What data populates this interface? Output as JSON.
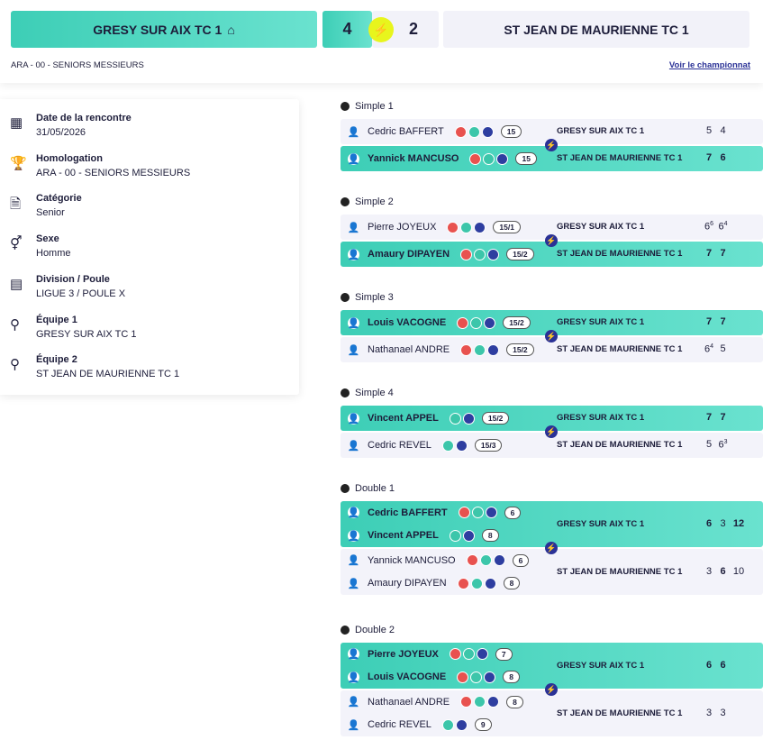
{
  "header": {
    "home_team": "GRESY SUR AIX TC 1",
    "home_score": 4,
    "away_score": 2,
    "away_team": "ST JEAN DE MAURIENNE TC 1",
    "division": "ARA - 00 - SENIORS MESSIEURS",
    "link": "Voir le championnat"
  },
  "info": [
    {
      "label": "Date de la rencontre",
      "value": "31/05/2026"
    },
    {
      "label": "Homologation",
      "value": "ARA - 00 - SENIORS MESSIEURS"
    },
    {
      "label": "Catégorie",
      "value": "Senior"
    },
    {
      "label": "Sexe",
      "value": "Homme"
    },
    {
      "label": "Division / Poule",
      "value": "LIGUE 3 / POULE X"
    },
    {
      "label": "Équipe 1",
      "value": "GRESY SUR AIX TC 1"
    },
    {
      "label": "Équipe 2",
      "value": "ST JEAN DE MAURIENNE TC 1"
    }
  ],
  "matches": [
    {
      "title": "Simple 1",
      "rows": [
        {
          "players": [
            {
              "name": "Cedric BAFFERT",
              "badges": [
                "red",
                "teal",
                "blue"
              ],
              "rank": "15"
            }
          ],
          "team": "GRESY SUR AIX TC 1",
          "winner": false,
          "scores": [
            {
              "g": 5
            },
            {
              "g": 4
            }
          ]
        },
        {
          "players": [
            {
              "name": "Yannick MANCUSO",
              "badges": [
                "red",
                "teal",
                "blue"
              ],
              "rank": "15"
            }
          ],
          "team": "ST JEAN DE MAURIENNE TC 1",
          "winner": true,
          "scores": [
            {
              "g": 7,
              "won": true
            },
            {
              "g": 6,
              "won": true
            }
          ]
        }
      ]
    },
    {
      "title": "Simple 2",
      "rows": [
        {
          "players": [
            {
              "name": "Pierre JOYEUX",
              "badges": [
                "red",
                "teal",
                "blue"
              ],
              "rank": "15/1"
            }
          ],
          "team": "GRESY SUR AIX TC 1",
          "winner": false,
          "scores": [
            {
              "g": 6,
              "tb": 6
            },
            {
              "g": 6,
              "tb": 4
            }
          ]
        },
        {
          "players": [
            {
              "name": "Amaury DIPAYEN",
              "badges": [
                "red",
                "teal",
                "blue"
              ],
              "rank": "15/2"
            }
          ],
          "team": "ST JEAN DE MAURIENNE TC 1",
          "winner": true,
          "scores": [
            {
              "g": 7,
              "won": true
            },
            {
              "g": 7,
              "won": true
            }
          ]
        }
      ]
    },
    {
      "title": "Simple 3",
      "rows": [
        {
          "players": [
            {
              "name": "Louis VACOGNE",
              "badges": [
                "red",
                "teal",
                "blue"
              ],
              "rank": "15/2"
            }
          ],
          "team": "GRESY SUR AIX TC 1",
          "winner": true,
          "scores": [
            {
              "g": 7,
              "won": true
            },
            {
              "g": 7,
              "won": true
            }
          ]
        },
        {
          "players": [
            {
              "name": "Nathanael ANDRE",
              "badges": [
                "red",
                "teal",
                "blue"
              ],
              "rank": "15/2"
            }
          ],
          "team": "ST JEAN DE MAURIENNE TC 1",
          "winner": false,
          "scores": [
            {
              "g": 6,
              "tb": 4
            },
            {
              "g": 5
            }
          ]
        }
      ]
    },
    {
      "title": "Simple 4",
      "rows": [
        {
          "players": [
            {
              "name": "Vincent APPEL",
              "badges": [
                "teal",
                "blue"
              ],
              "rank": "15/2"
            }
          ],
          "team": "GRESY SUR AIX TC 1",
          "winner": true,
          "scores": [
            {
              "g": 7,
              "won": true
            },
            {
              "g": 7,
              "won": true
            }
          ]
        },
        {
          "players": [
            {
              "name": "Cedric REVEL",
              "badges": [
                "teal",
                "blue"
              ],
              "rank": "15/3"
            }
          ],
          "team": "ST JEAN DE MAURIENNE TC 1",
          "winner": false,
          "scores": [
            {
              "g": 5
            },
            {
              "g": 6,
              "tb": 3
            }
          ]
        }
      ]
    },
    {
      "title": "Double 1",
      "rows": [
        {
          "players": [
            {
              "name": "Cedric BAFFERT",
              "badges": [
                "red",
                "teal",
                "blue"
              ],
              "rank": "6"
            },
            {
              "name": "Vincent APPEL",
              "badges": [
                "teal",
                "blue"
              ],
              "rank": "8"
            }
          ],
          "team": "GRESY SUR AIX TC 1",
          "winner": true,
          "scores": [
            {
              "g": 6,
              "won": true
            },
            {
              "g": 3
            },
            {
              "g": 12,
              "won": true
            }
          ]
        },
        {
          "players": [
            {
              "name": "Yannick MANCUSO",
              "badges": [
                "red",
                "teal",
                "blue"
              ],
              "rank": "6"
            },
            {
              "name": "Amaury DIPAYEN",
              "badges": [
                "red",
                "teal",
                "blue"
              ],
              "rank": "8"
            }
          ],
          "team": "ST JEAN DE MAURIENNE TC 1",
          "winner": false,
          "scores": [
            {
              "g": 3
            },
            {
              "g": 6,
              "won": true
            },
            {
              "g": 10
            }
          ]
        }
      ]
    },
    {
      "title": "Double 2",
      "rows": [
        {
          "players": [
            {
              "name": "Pierre JOYEUX",
              "badges": [
                "red",
                "teal",
                "blue"
              ],
              "rank": "7"
            },
            {
              "name": "Louis VACOGNE",
              "badges": [
                "red",
                "teal",
                "blue"
              ],
              "rank": "8"
            }
          ],
          "team": "GRESY SUR AIX TC 1",
          "winner": true,
          "scores": [
            {
              "g": 6,
              "won": true
            },
            {
              "g": 6,
              "won": true
            }
          ]
        },
        {
          "players": [
            {
              "name": "Nathanael ANDRE",
              "badges": [
                "red",
                "teal",
                "blue"
              ],
              "rank": "8"
            },
            {
              "name": "Cedric REVEL",
              "badges": [
                "teal",
                "blue"
              ],
              "rank": "9"
            }
          ],
          "team": "ST JEAN DE MAURIENNE TC 1",
          "winner": false,
          "scores": [
            {
              "g": 3
            },
            {
              "g": 3
            }
          ]
        }
      ]
    }
  ]
}
